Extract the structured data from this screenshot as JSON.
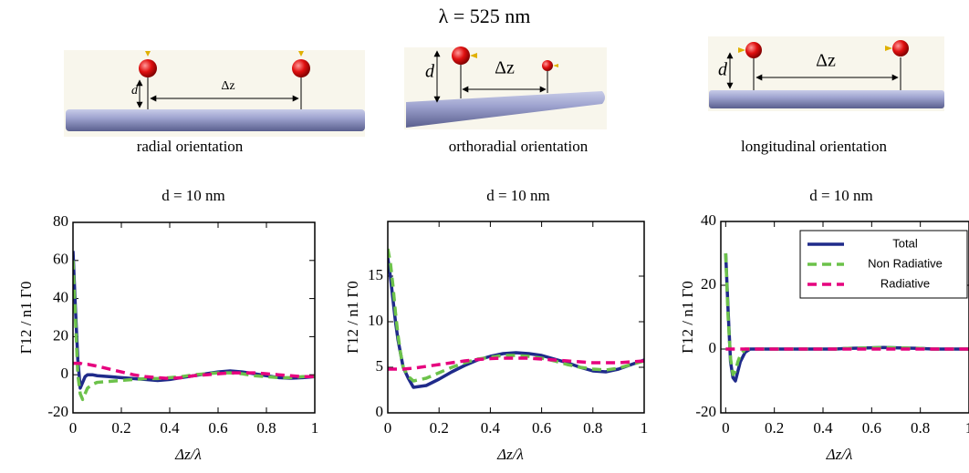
{
  "header": {
    "title": "λ = 525 nm"
  },
  "diagrams": [
    {
      "caption": "radial orientation",
      "d": "d",
      "dz": "Δz"
    },
    {
      "caption": "orthoradial orientation",
      "d": "d",
      "dz": "Δz"
    },
    {
      "caption": "longitudinal orientation",
      "d": "d",
      "dz": "Δz"
    }
  ],
  "chart_data": [
    {
      "type": "line",
      "title": "d = 10 nm",
      "xlabel": "Δz/λ",
      "ylabel": "Γ12 / n1 Γ0",
      "x": [
        0,
        0.01,
        0.02,
        0.03,
        0.04,
        0.05,
        0.06,
        0.08,
        0.1,
        0.15,
        0.2,
        0.25,
        0.3,
        0.35,
        0.4,
        0.45,
        0.5,
        0.55,
        0.6,
        0.65,
        0.7,
        0.75,
        0.8,
        0.85,
        0.9,
        0.95,
        1
      ],
      "xlim": [
        0,
        1
      ],
      "xticks": [
        0,
        0.2,
        0.4,
        0.6,
        0.8,
        1
      ],
      "ylim": [
        -20,
        80
      ],
      "yticks": [
        -20,
        0,
        20,
        40,
        60,
        80
      ],
      "series": [
        {
          "color": "#1f2a8a",
          "style": "solid",
          "values": [
            65,
            35,
            8,
            -7,
            -4,
            -1,
            0,
            0,
            -0.5,
            -1,
            -1.5,
            -2,
            -2.5,
            -3,
            -2.5,
            -1.5,
            -0.5,
            0.5,
            1.5,
            2,
            1.5,
            0.5,
            -0.5,
            -1.5,
            -1.8,
            -1.5,
            -1
          ]
        },
        {
          "color": "#6cc24a",
          "style": "dashed",
          "values": [
            60,
            30,
            0,
            -10,
            -13,
            -10,
            -7,
            -5,
            -4,
            -3.5,
            -3,
            -2.5,
            -2,
            -2,
            -1.5,
            -1,
            0,
            0.5,
            1,
            1,
            0.5,
            -0.5,
            -1,
            -1.5,
            -1.5,
            -1,
            -1
          ]
        },
        {
          "color": "#e6007e",
          "style": "dashed",
          "values": [
            6,
            6,
            6,
            6,
            5.5,
            5.5,
            5.5,
            5,
            4.5,
            3,
            1.5,
            0,
            -1,
            -1.5,
            -2,
            -1.5,
            -0.5,
            0,
            0.5,
            1,
            1,
            1,
            0.5,
            0,
            -0.5,
            -1,
            -1
          ]
        }
      ]
    },
    {
      "type": "line",
      "title": "d = 10 nm",
      "xlabel": "Δz/λ",
      "ylabel": "Γ12 / n1 Γ0",
      "x": [
        0,
        0.01,
        0.02,
        0.03,
        0.04,
        0.05,
        0.06,
        0.08,
        0.1,
        0.15,
        0.2,
        0.25,
        0.3,
        0.35,
        0.4,
        0.45,
        0.5,
        0.55,
        0.6,
        0.65,
        0.7,
        0.75,
        0.8,
        0.85,
        0.9,
        0.95,
        1
      ],
      "xlim": [
        0,
        1
      ],
      "xticks": [
        0,
        0.2,
        0.4,
        0.6,
        0.8,
        1
      ],
      "ylim": [
        0,
        21
      ],
      "yticks": [
        0,
        5,
        10,
        15
      ],
      "series": [
        {
          "color": "#1f2a8a",
          "style": "solid",
          "values": [
            17,
            15,
            12.5,
            10,
            8,
            6.5,
            5,
            3.8,
            2.8,
            3,
            3.7,
            4.5,
            5.2,
            5.8,
            6.2,
            6.5,
            6.6,
            6.5,
            6.3,
            5.9,
            5.5,
            5,
            4.6,
            4.5,
            4.8,
            5.3,
            5.8
          ]
        },
        {
          "color": "#6cc24a",
          "style": "dashed",
          "values": [
            18,
            16.5,
            14,
            11,
            8.5,
            6.5,
            5,
            4,
            3.5,
            3.8,
            4.4,
            5,
            5.5,
            5.9,
            6.1,
            6.3,
            6.3,
            6.2,
            6,
            5.7,
            5.3,
            5,
            4.8,
            4.7,
            4.9,
            5.3,
            5.7
          ]
        },
        {
          "color": "#e6007e",
          "style": "dashed",
          "values": [
            4.8,
            4.8,
            4.8,
            4.8,
            4.8,
            4.8,
            4.8,
            4.85,
            4.9,
            5.1,
            5.3,
            5.5,
            5.7,
            5.85,
            5.95,
            6,
            6,
            6,
            5.9,
            5.8,
            5.7,
            5.6,
            5.5,
            5.5,
            5.5,
            5.6,
            5.7
          ]
        }
      ]
    },
    {
      "type": "line",
      "title": "d = 10 nm",
      "xlabel": "Δz/λ",
      "ylabel": "Γ12 / n1 Γ0",
      "x": [
        0,
        0.01,
        0.02,
        0.03,
        0.04,
        0.05,
        0.06,
        0.08,
        0.1,
        0.15,
        0.2,
        0.25,
        0.3,
        0.35,
        0.4,
        0.45,
        0.5,
        0.55,
        0.6,
        0.65,
        0.7,
        0.75,
        0.8,
        0.85,
        0.9,
        0.95,
        1
      ],
      "xlim": [
        -0.02,
        1
      ],
      "xticks": [
        0,
        0.2,
        0.4,
        0.6,
        0.8,
        1
      ],
      "ylim": [
        -20,
        40
      ],
      "yticks": [
        -20,
        0,
        20,
        40
      ],
      "legend": "upper right",
      "series": [
        {
          "name": "Total",
          "color": "#1f2a8a",
          "style": "solid",
          "values": [
            30,
            12,
            -4,
            -9,
            -10,
            -7,
            -4,
            -1,
            0,
            0,
            0,
            0,
            0,
            0,
            0,
            0,
            0.2,
            0.3,
            0.4,
            0.5,
            0.4,
            0.3,
            0.2,
            0,
            0,
            0,
            0
          ]
        },
        {
          "name": "Non Radiative",
          "color": "#6cc24a",
          "style": "dashed",
          "values": [
            30,
            10,
            -3,
            -8,
            -7,
            -4,
            -2,
            0,
            0,
            0,
            0,
            0,
            0,
            0,
            0,
            0,
            0.2,
            0.3,
            0.4,
            0.5,
            0.4,
            0.3,
            0.2,
            0,
            0,
            0,
            0
          ]
        },
        {
          "name": "Radiative",
          "color": "#e6007e",
          "style": "dashed",
          "values": [
            0,
            0,
            0,
            0,
            0,
            0,
            0,
            0,
            0,
            0,
            0,
            0,
            0,
            0,
            0,
            0,
            0,
            0,
            0,
            0,
            0,
            0,
            0,
            0,
            0,
            0,
            0
          ]
        }
      ]
    }
  ]
}
